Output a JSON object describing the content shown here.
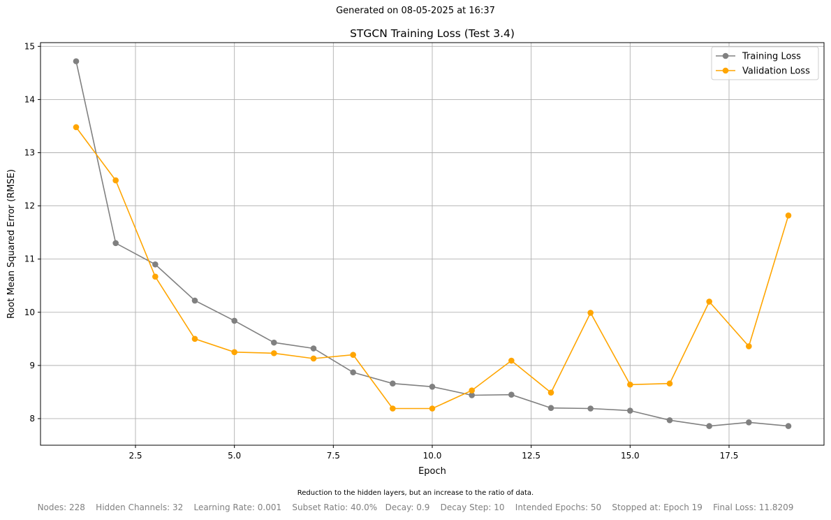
{
  "header": {
    "generated": "Generated on 08-05-2025 at 16:37"
  },
  "chart_data": {
    "type": "line",
    "title": "STGCN Training Loss (Test 3.4)",
    "xlabel": "Epoch",
    "ylabel": "Root Mean Squared Error (RMSE)",
    "xlim": [
      0.1,
      19.9
    ],
    "ylim": [
      7.5,
      15.07
    ],
    "xticks": [
      2.5,
      5.0,
      7.5,
      10.0,
      12.5,
      15.0,
      17.5
    ],
    "xtick_labels": [
      "2.5",
      "5.0",
      "7.5",
      "10.0",
      "12.5",
      "15.0",
      "17.5"
    ],
    "yticks": [
      8,
      9,
      10,
      11,
      12,
      13,
      14,
      15
    ],
    "ytick_labels": [
      "8",
      "9",
      "10",
      "11",
      "12",
      "13",
      "14",
      "15"
    ],
    "grid": true,
    "legend_position": "top-right",
    "x": [
      1,
      2,
      3,
      4,
      5,
      6,
      7,
      8,
      9,
      10,
      11,
      12,
      13,
      14,
      15,
      16,
      17,
      18,
      19
    ],
    "series": [
      {
        "name": "Training Loss",
        "color": "#808080",
        "values": [
          14.72,
          11.3,
          10.9,
          10.22,
          9.84,
          9.43,
          9.32,
          8.87,
          8.66,
          8.6,
          8.44,
          8.45,
          8.2,
          8.19,
          8.15,
          7.97,
          7.86,
          7.93,
          7.86
        ]
      },
      {
        "name": "Validation Loss",
        "color": "#ffa500",
        "values": [
          13.48,
          12.48,
          10.67,
          9.5,
          9.25,
          9.23,
          9.13,
          9.2,
          8.19,
          8.19,
          8.53,
          9.09,
          8.49,
          9.99,
          8.64,
          8.66,
          10.2,
          9.36,
          11.82
        ]
      }
    ]
  },
  "notes": {
    "description": "Reduction to the hidden layers, but an increase to the ratio of data.",
    "footer": "Nodes: 228    Hidden Channels: 32    Learning Rate: 0.001    Subset Ratio: 40.0%   Decay: 0.9    Decay Step: 10    Intended Epochs: 50    Stopped at: Epoch 19    Final Loss: 11.8209"
  }
}
